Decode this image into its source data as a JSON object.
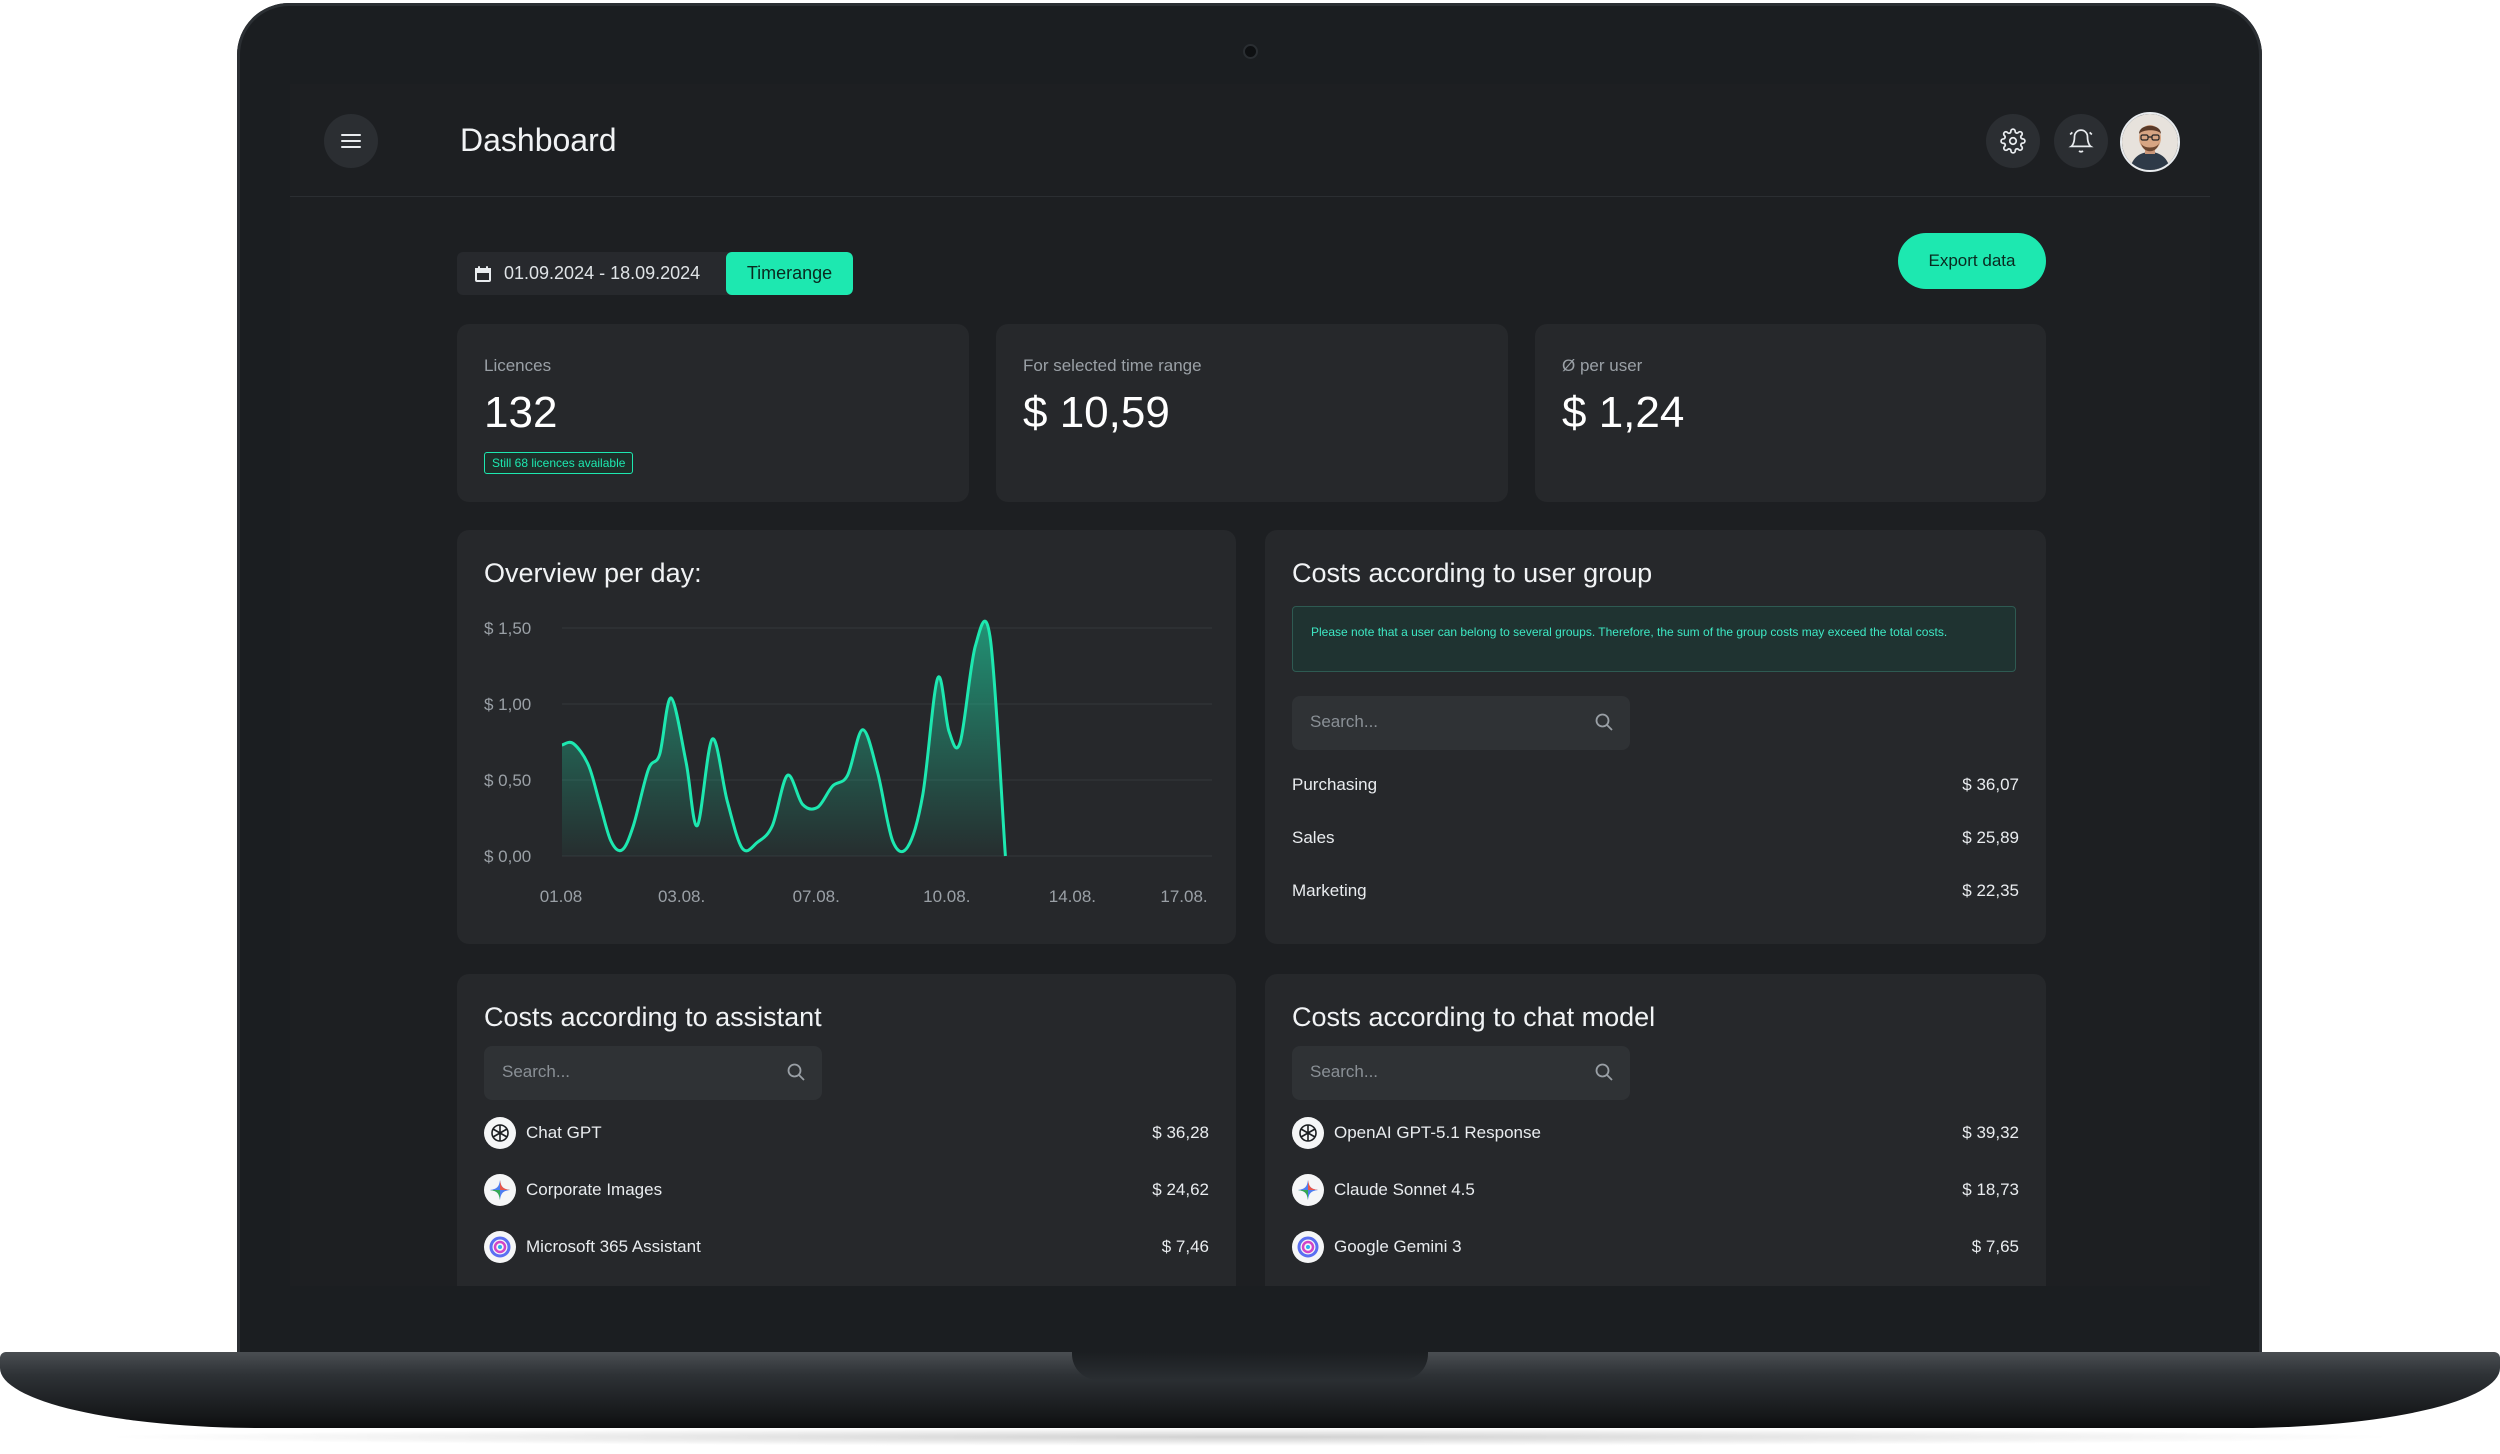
{
  "header": {
    "title": "Dashboard",
    "menu_icon": "hamburger-menu-icon",
    "settings_icon": "gear-icon",
    "notifications_icon": "bell-icon",
    "avatar": "user-avatar"
  },
  "toolbar": {
    "date_range": "01.09.2024 - 18.09.2024",
    "timerange_label": "Timerange",
    "export_label": "Export data"
  },
  "stats": {
    "licences": {
      "label": "Licences",
      "value": "132",
      "badge": "Still 68 licences available"
    },
    "time_range": {
      "label": "For selected time range",
      "value": "$ 10,59"
    },
    "per_user": {
      "label": "Ø per user",
      "value": "$ 1,24"
    }
  },
  "overview": {
    "title": "Overview per day:"
  },
  "chart_data": {
    "type": "area",
    "title": "Overview per day:",
    "x_ticks": [
      "01.08",
      "03.08.",
      "07.08.",
      "10.08.",
      "14.08.",
      "17.08."
    ],
    "y_ticks": [
      "$ 1,50",
      "$ 1,00",
      "$ 0,50",
      "$ 0,00"
    ],
    "ylim": [
      0,
      1.5
    ],
    "series": [
      {
        "x": [
          0,
          0.3,
          0.7,
          1.0,
          1.3,
          1.6,
          1.9,
          2.3,
          2.6,
          2.9,
          3.3,
          3.6,
          4.0,
          4.4,
          4.8,
          5.2,
          5.6,
          6.0,
          6.4,
          6.8,
          7.2,
          7.6,
          8.0,
          8.4,
          8.8,
          9.2,
          9.6,
          10.0,
          10.3,
          10.6,
          11.0,
          11.4,
          11.8,
          12.2,
          12.6,
          13.0,
          13.4,
          13.8,
          14.2,
          14.6,
          14.9,
          15.2,
          15.5,
          15.8,
          16.1,
          16.4,
          16.7,
          17.0,
          17.3
        ],
        "values": [
          0.73,
          0.74,
          0.6,
          0.35,
          0.1,
          0.04,
          0.2,
          0.57,
          0.67,
          1.04,
          0.62,
          0.2,
          0.77,
          0.36,
          0.05,
          0.09,
          0.2,
          0.53,
          0.34,
          0.32,
          0.46,
          0.53,
          0.83,
          0.55,
          0.1,
          0.06,
          0.4,
          1.17,
          0.82,
          0.75,
          1.38,
          1.43,
          0.0,
          0.0,
          0.0,
          0.0,
          0.0,
          0.0,
          0.0,
          0.0,
          0.0,
          0.0,
          0.0,
          0.0,
          0.0,
          0.0,
          0.0,
          0.0,
          0.0
        ],
        "color": "#1de8b0"
      }
    ],
    "grid": true
  },
  "user_groups": {
    "title": "Costs according to user group",
    "note": "Please note that a user can belong to several groups. Therefore, the sum of the group costs may exceed the total costs.",
    "search_placeholder": "Search...",
    "rows": [
      {
        "name": "Purchasing",
        "value": "$ 36,07"
      },
      {
        "name": "Sales",
        "value": "$ 25,89"
      },
      {
        "name": "Marketing",
        "value": "$ 22,35"
      }
    ]
  },
  "assistants": {
    "title": "Costs according to assistant",
    "search_placeholder": "Search...",
    "rows": [
      {
        "name": "Chat GPT",
        "value": "$ 36,28",
        "icon": "openai-icon"
      },
      {
        "name": "Corporate Images",
        "value": "$ 24,62",
        "icon": "gemini-star-icon"
      },
      {
        "name": "Microsoft 365 Assistant",
        "value": "$ 7,46",
        "icon": "copilot-icon"
      }
    ]
  },
  "chat_models": {
    "title": "Costs according to chat model",
    "search_placeholder": "Search...",
    "rows": [
      {
        "name": "OpenAI GPT-5.1 Response",
        "value": "$ 39,32",
        "icon": "openai-icon"
      },
      {
        "name": "Claude Sonnet 4.5",
        "value": "$ 18,73",
        "icon": "gemini-star-icon"
      },
      {
        "name": "Google Gemini 3",
        "value": "$ 7,65",
        "icon": "copilot-icon"
      }
    ]
  },
  "colors": {
    "accent": "#1de8b0",
    "background": "#1d1f22",
    "card": "#26282b"
  }
}
